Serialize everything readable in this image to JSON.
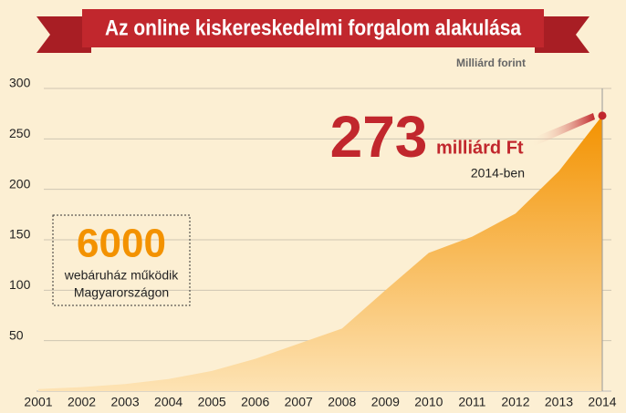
{
  "chart_data": {
    "type": "area",
    "title": "Az online kiskereskedelmi forgalom alakulása",
    "unit_label": "Milliárd forint",
    "categories": [
      "2001",
      "2002",
      "2003",
      "2004",
      "2005",
      "2006",
      "2007",
      "2008",
      "2009",
      "2010",
      "2011",
      "2012",
      "2013",
      "2014"
    ],
    "values": [
      2,
      4,
      7,
      12,
      20,
      32,
      47,
      62,
      100,
      137,
      153,
      176,
      218,
      273
    ],
    "color": "#f39200",
    "highlight_color": "#c1272d",
    "ylim": [
      0,
      300
    ],
    "yticks": [
      50,
      100,
      150,
      200,
      250,
      300
    ],
    "grid": true,
    "annotations": {
      "last_value": {
        "number": "273",
        "unit": "milliárd Ft",
        "note": "2014-ben"
      },
      "stores": {
        "number": "6000",
        "line1": "webáruház működik",
        "line2": "Magyarországon"
      }
    }
  }
}
